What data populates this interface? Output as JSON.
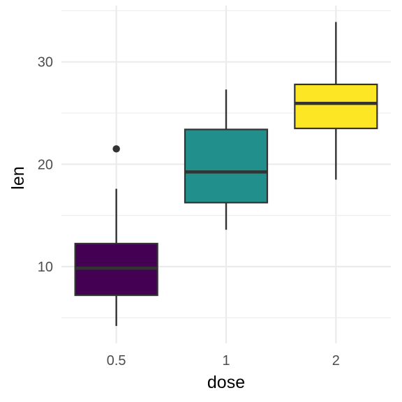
{
  "chart_data": {
    "type": "box",
    "xlabel": "dose",
    "ylabel": "len",
    "categories": [
      "0.5",
      "1",
      "2"
    ],
    "ylim": [
      2.5,
      35.5
    ],
    "y_major_ticks": [
      10,
      20,
      30
    ],
    "y_minor_ticks": [
      5,
      15,
      25,
      35
    ],
    "grid": true,
    "legend": "none",
    "boxes": [
      {
        "category": "0.5",
        "whisker_low": 4.2,
        "q1": 7.2,
        "median": 9.85,
        "q3": 12.25,
        "whisker_high": 17.6,
        "outliers": [
          21.5
        ],
        "fill": "#440154"
      },
      {
        "category": "1",
        "whisker_low": 13.6,
        "q1": 16.25,
        "median": 19.25,
        "q3": 23.4,
        "whisker_high": 27.3,
        "outliers": [],
        "fill": "#21908C"
      },
      {
        "category": "2",
        "whisker_low": 18.5,
        "q1": 23.5,
        "median": 25.95,
        "q3": 27.8,
        "whisker_high": 33.9,
        "outliers": [],
        "fill": "#FDE725"
      }
    ]
  },
  "colors": {
    "grid": "#ebebeb",
    "box_outline": "#333333",
    "tick_text": "#4d4d4d",
    "title_text": "#000000"
  }
}
